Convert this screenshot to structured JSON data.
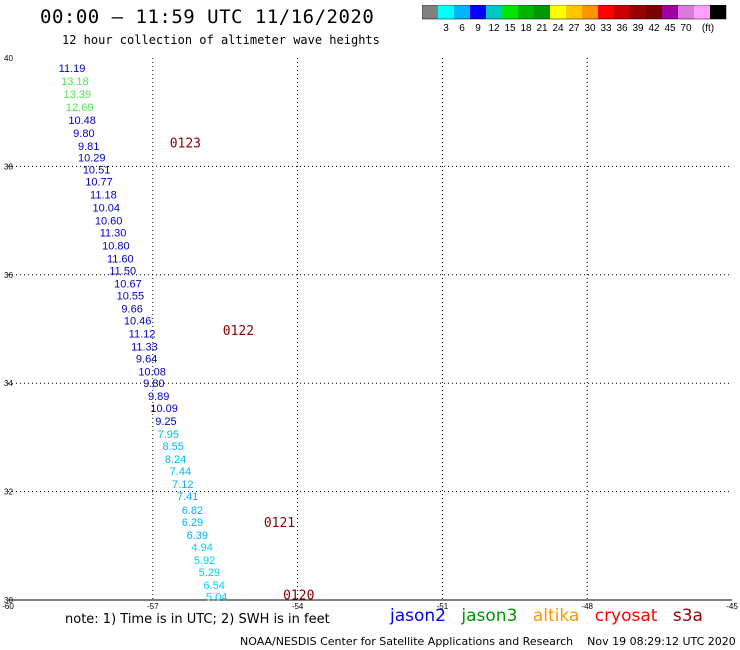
{
  "header": {
    "title": "00:00 – 11:59 UTC 11/16/2020",
    "subtitle": "12 hour collection of altimeter wave heights"
  },
  "colorbar": {
    "unit": "(ft)",
    "colors": [
      "#808080",
      "#00ffff",
      "#00b4ff",
      "#0000ff",
      "#00c8c8",
      "#00e600",
      "#00b400",
      "#009600",
      "#ffff00",
      "#ffc800",
      "#ff9600",
      "#ff0000",
      "#c80000",
      "#960000",
      "#780000",
      "#a000a0",
      "#dc78dc",
      "#ffa0ff",
      "#000000"
    ],
    "labels": [
      "3",
      "6",
      "9",
      "12",
      "15",
      "18",
      "21",
      "24",
      "27",
      "30",
      "33",
      "36",
      "39",
      "42",
      "45",
      "70"
    ]
  },
  "chart_data": {
    "type": "scatter",
    "xlim": [
      -60,
      -45
    ],
    "ylim": [
      30,
      40
    ],
    "xticks": [
      "-60",
      "-57",
      "-54",
      "-51",
      "-48",
      "-45"
    ],
    "yticks": [
      "30",
      "32",
      "34",
      "36",
      "38",
      "40"
    ],
    "grid": true,
    "points": [
      {
        "lon": -58.95,
        "lat": 39.82,
        "v": "11.19",
        "c": "#0000c8"
      },
      {
        "lon": -58.9,
        "lat": 39.58,
        "v": "13.18",
        "c": "#50e650"
      },
      {
        "lon": -58.85,
        "lat": 39.34,
        "v": "13.39",
        "c": "#50e650"
      },
      {
        "lon": -58.8,
        "lat": 39.1,
        "v": "12.69",
        "c": "#50e650"
      },
      {
        "lon": -58.75,
        "lat": 38.86,
        "v": "10.48",
        "c": "#0000c8"
      },
      {
        "lon": -58.65,
        "lat": 38.62,
        "v": "9.80",
        "c": "#0000c8"
      },
      {
        "lon": -58.55,
        "lat": 38.38,
        "v": "9.81",
        "c": "#0000c8"
      },
      {
        "lon": -58.55,
        "lat": 38.16,
        "v": "10.29",
        "c": "#0000c8"
      },
      {
        "lon": -58.45,
        "lat": 37.94,
        "v": "10.51",
        "c": "#0000c8"
      },
      {
        "lon": -58.4,
        "lat": 37.72,
        "v": "10.77",
        "c": "#0000c8"
      },
      {
        "lon": -58.3,
        "lat": 37.48,
        "v": "11.18",
        "c": "#0000c8"
      },
      {
        "lon": -58.25,
        "lat": 37.24,
        "v": "10.04",
        "c": "#0000c8"
      },
      {
        "lon": -58.2,
        "lat": 37.0,
        "v": "10.60",
        "c": "#0000c8"
      },
      {
        "lon": -58.1,
        "lat": 36.78,
        "v": "11.30",
        "c": "#0000c8"
      },
      {
        "lon": -58.05,
        "lat": 36.54,
        "v": "10.80",
        "c": "#0000c8"
      },
      {
        "lon": -57.95,
        "lat": 36.3,
        "v": "11.60",
        "c": "#0000c8"
      },
      {
        "lon": -57.9,
        "lat": 36.08,
        "v": "11.50",
        "c": "#0000c8"
      },
      {
        "lon": -57.8,
        "lat": 35.84,
        "v": "10.67",
        "c": "#0000c8"
      },
      {
        "lon": -57.75,
        "lat": 35.62,
        "v": "10.55",
        "c": "#0000c8"
      },
      {
        "lon": -57.65,
        "lat": 35.38,
        "v": "9.66",
        "c": "#0000c8"
      },
      {
        "lon": -57.6,
        "lat": 35.16,
        "v": "10.46",
        "c": "#0000c8"
      },
      {
        "lon": -57.5,
        "lat": 34.92,
        "v": "11.12",
        "c": "#0000c8"
      },
      {
        "lon": -57.45,
        "lat": 34.68,
        "v": "11.33",
        "c": "#0000c8"
      },
      {
        "lon": -57.35,
        "lat": 34.46,
        "v": "9.64",
        "c": "#0000c8"
      },
      {
        "lon": -57.3,
        "lat": 34.22,
        "v": "10.08",
        "c": "#0000c8"
      },
      {
        "lon": -57.2,
        "lat": 34.0,
        "v": "9.80",
        "c": "#0000c8"
      },
      {
        "lon": -57.1,
        "lat": 33.76,
        "v": "9.89",
        "c": "#0000c8"
      },
      {
        "lon": -57.05,
        "lat": 33.54,
        "v": "10.09",
        "c": "#0000c8"
      },
      {
        "lon": -56.95,
        "lat": 33.3,
        "v": "9.25",
        "c": "#0000c8"
      },
      {
        "lon": -56.9,
        "lat": 33.06,
        "v": "7.95",
        "c": "#00b4ff"
      },
      {
        "lon": -56.8,
        "lat": 32.84,
        "v": "8.55",
        "c": "#00b4ff"
      },
      {
        "lon": -56.75,
        "lat": 32.6,
        "v": "8.24",
        "c": "#00b4ff"
      },
      {
        "lon": -56.65,
        "lat": 32.38,
        "v": "7.44",
        "c": "#00b4ff"
      },
      {
        "lon": -56.6,
        "lat": 32.14,
        "v": "7.12",
        "c": "#00b4ff"
      },
      {
        "lon": -56.5,
        "lat": 31.92,
        "v": "7.41",
        "c": "#00b4ff"
      },
      {
        "lon": -56.4,
        "lat": 31.66,
        "v": "6.82",
        "c": "#00b4ff"
      },
      {
        "lon": -56.4,
        "lat": 31.44,
        "v": "6.29",
        "c": "#00b4ff"
      },
      {
        "lon": -56.3,
        "lat": 31.2,
        "v": "6.39",
        "c": "#00b4ff"
      },
      {
        "lon": -56.2,
        "lat": 30.98,
        "v": "4.94",
        "c": "#00d2ff"
      },
      {
        "lon": -56.15,
        "lat": 30.74,
        "v": "5.92",
        "c": "#00d2ff"
      },
      {
        "lon": -56.05,
        "lat": 30.52,
        "v": "5.29",
        "c": "#00d2ff"
      },
      {
        "lon": -55.95,
        "lat": 30.28,
        "v": "6.54",
        "c": "#00d2ff"
      },
      {
        "lon": -55.9,
        "lat": 30.06,
        "v": "5.04",
        "c": "#00d2ff"
      }
    ],
    "time_labels": [
      {
        "lon": -56.65,
        "lat": 38.44,
        "text": "0123"
      },
      {
        "lon": -55.55,
        "lat": 34.98,
        "text": "0122"
      },
      {
        "lon": -54.7,
        "lat": 31.44,
        "text": "0121"
      },
      {
        "lon": -54.3,
        "lat": 30.1,
        "text": "0120"
      }
    ]
  },
  "note": "note: 1) Time is in UTC; 2) SWH is in feet",
  "legend": [
    {
      "name": "jason2",
      "color": "#0000ff"
    },
    {
      "name": "jason3",
      "color": "#009600"
    },
    {
      "name": "altika",
      "color": "#ff9600"
    },
    {
      "name": "cryosat",
      "color": "#ff0000"
    },
    {
      "name": "s3a",
      "color": "#960000"
    }
  ],
  "footer": {
    "source": "NOAA/NESDIS Center for Satellite Applications and Research",
    "timestamp": "Nov 19 08:29:12 UTC 2020"
  }
}
